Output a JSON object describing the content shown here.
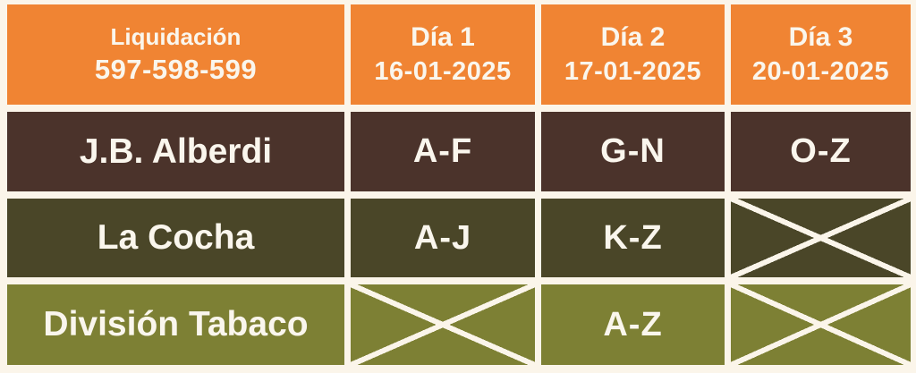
{
  "colors": {
    "orange": "#F08433",
    "brown": "#4B332B",
    "dark_olive": "#4A4628",
    "olive": "#7D8034",
    "cream_bg": "#FBF5EA",
    "text": "#FAF6ED"
  },
  "header": {
    "liquidacion": {
      "title": "Liquidación",
      "numbers": "597-598-599"
    },
    "days": [
      {
        "label": "Día 1",
        "date": "16-01-2025"
      },
      {
        "label": "Día 2",
        "date": "17-01-2025"
      },
      {
        "label": "Día 3",
        "date": "20-01-2025"
      }
    ]
  },
  "rows": [
    {
      "label": "J.B. Alberdi",
      "cells": [
        {
          "text": "A-F",
          "crossed": false
        },
        {
          "text": "G-N",
          "crossed": false
        },
        {
          "text": "O-Z",
          "crossed": false
        }
      ]
    },
    {
      "label": "La Cocha",
      "cells": [
        {
          "text": "A-J",
          "crossed": false
        },
        {
          "text": "K-Z",
          "crossed": false
        },
        {
          "text": "",
          "crossed": true
        }
      ]
    },
    {
      "label": "División Tabaco",
      "cells": [
        {
          "text": "",
          "crossed": true
        },
        {
          "text": "A-Z",
          "crossed": false
        },
        {
          "text": "",
          "crossed": true
        }
      ]
    }
  ]
}
